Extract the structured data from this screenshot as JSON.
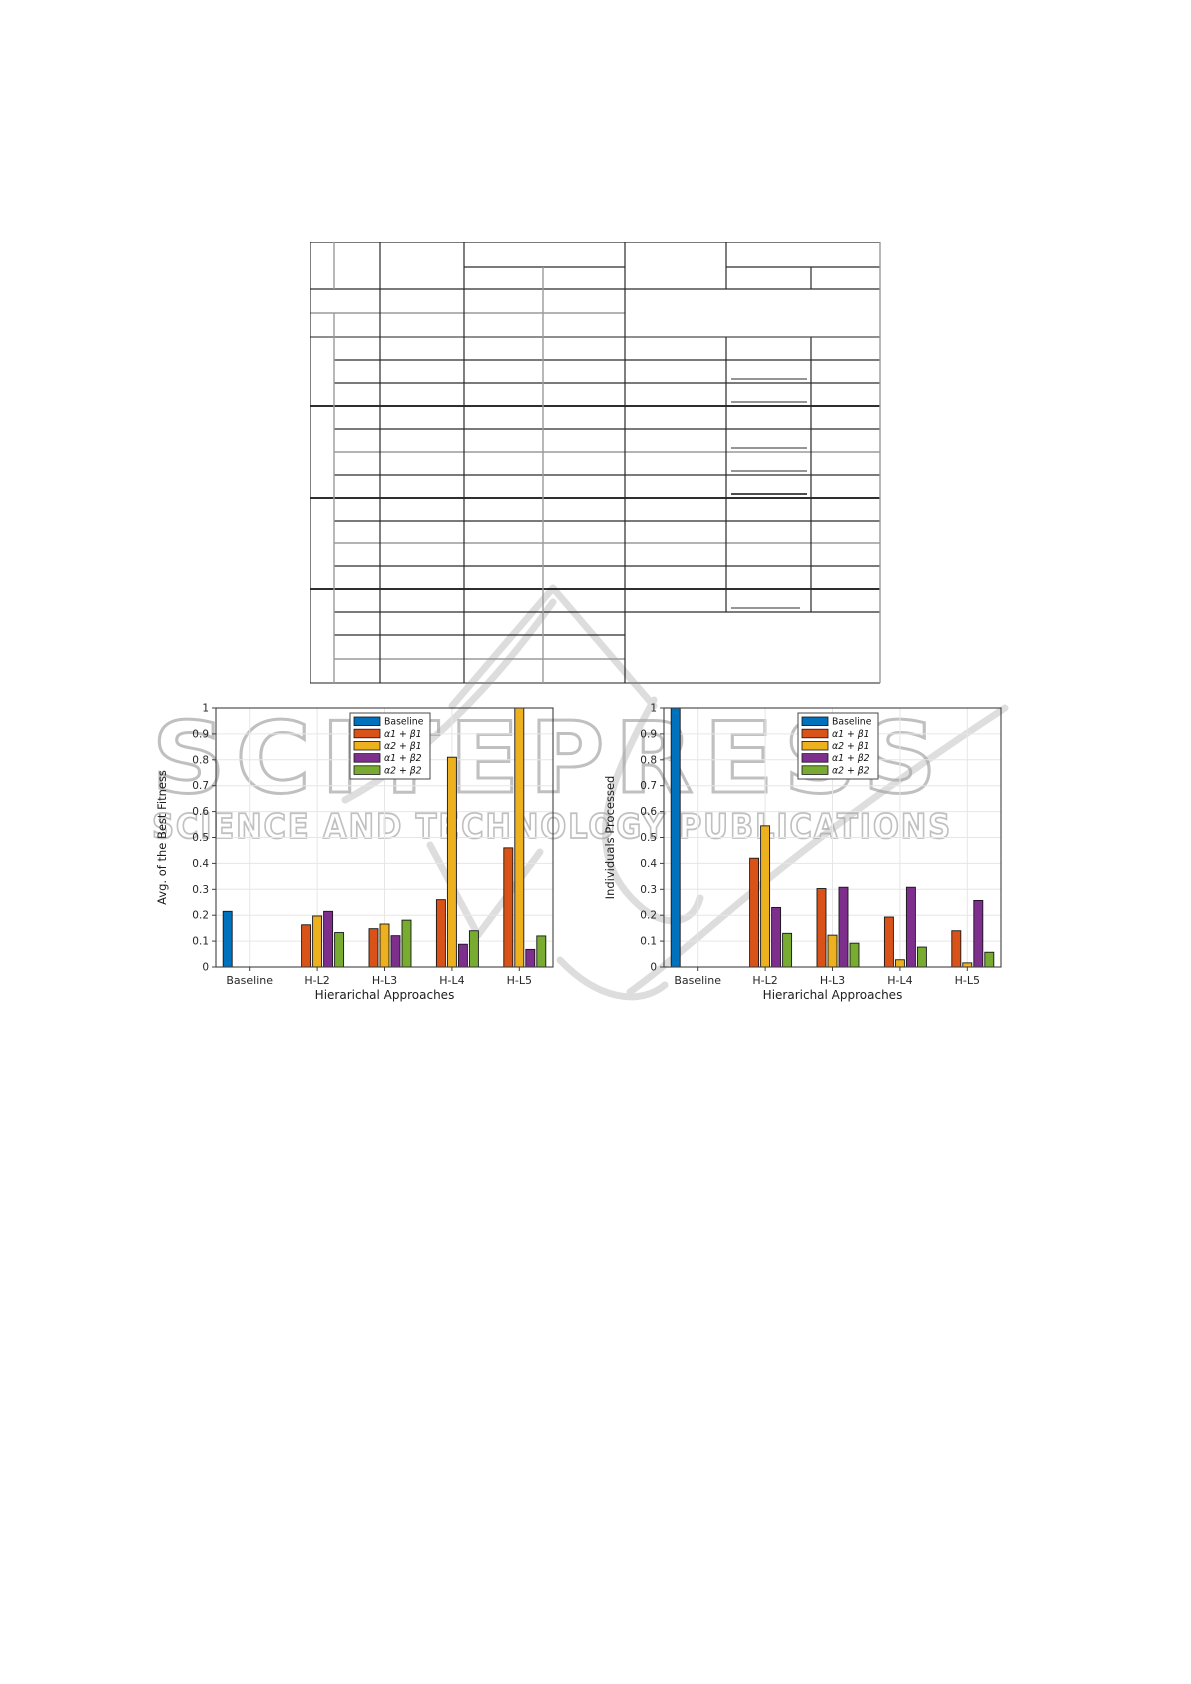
{
  "page": {
    "background": "#ffffff"
  },
  "watermark": {
    "title": "SCITEPRESS",
    "subtitle": "SCIENCE AND TECHNOLOGY PUBLICATIONS",
    "color": "#a8a8a8"
  },
  "table": {
    "visible_text": [],
    "note": "empty table grid: 2-row header with two spanned sub-header groups, 4 row-groups, bottom-right region merged; short horizontal rule marks in six cells of the second-to-last column",
    "columns": 8,
    "rows": 19
  },
  "chart_data": [
    {
      "type": "bar",
      "title": "",
      "xlabel": "Hierarichal Approaches",
      "ylabel": "Avg. of the Best Fitness",
      "categories": [
        "Baseline",
        "H-L2",
        "H-L3",
        "H-L4",
        "H-L5"
      ],
      "ylim": [
        0,
        1
      ],
      "ytick_step": 0.1,
      "grid": true,
      "legend_position": "top-center",
      "series": [
        {
          "name": "Baseline",
          "color": "#0072BD",
          "values": [
            0.215,
            0,
            0,
            0,
            0
          ]
        },
        {
          "name": "α1 + β1",
          "color": "#D95319",
          "values": [
            0,
            0.163,
            0.148,
            0.26,
            0.46
          ]
        },
        {
          "name": "α2 + β1",
          "color": "#EDB120",
          "values": [
            0,
            0.197,
            0.166,
            0.81,
            1.0
          ]
        },
        {
          "name": "α1 + β2",
          "color": "#7E2F8E",
          "values": [
            0,
            0.215,
            0.121,
            0.088,
            0.068
          ]
        },
        {
          "name": "α2 + β2",
          "color": "#77AC30",
          "values": [
            0,
            0.133,
            0.181,
            0.14,
            0.12
          ]
        }
      ]
    },
    {
      "type": "bar",
      "title": "",
      "xlabel": "Hierarichal Approaches",
      "ylabel": "Individuals Processed",
      "categories": [
        "Baseline",
        "H-L2",
        "H-L3",
        "H-L4",
        "H-L5"
      ],
      "ylim": [
        0,
        1
      ],
      "ytick_step": 0.1,
      "grid": true,
      "legend_position": "top-center",
      "series": [
        {
          "name": "Baseline",
          "color": "#0072BD",
          "values": [
            1.0,
            0,
            0,
            0,
            0
          ]
        },
        {
          "name": "α1 + β1",
          "color": "#D95319",
          "values": [
            0,
            0.42,
            0.303,
            0.193,
            0.14
          ]
        },
        {
          "name": "α2 + β1",
          "color": "#EDB120",
          "values": [
            0,
            0.545,
            0.123,
            0.028,
            0.016
          ]
        },
        {
          "name": "α1 + β2",
          "color": "#7E2F8E",
          "values": [
            0,
            0.23,
            0.308,
            0.308,
            0.257
          ]
        },
        {
          "name": "α2 + β2",
          "color": "#77AC30",
          "values": [
            0,
            0.13,
            0.092,
            0.077,
            0.057
          ]
        }
      ]
    }
  ]
}
